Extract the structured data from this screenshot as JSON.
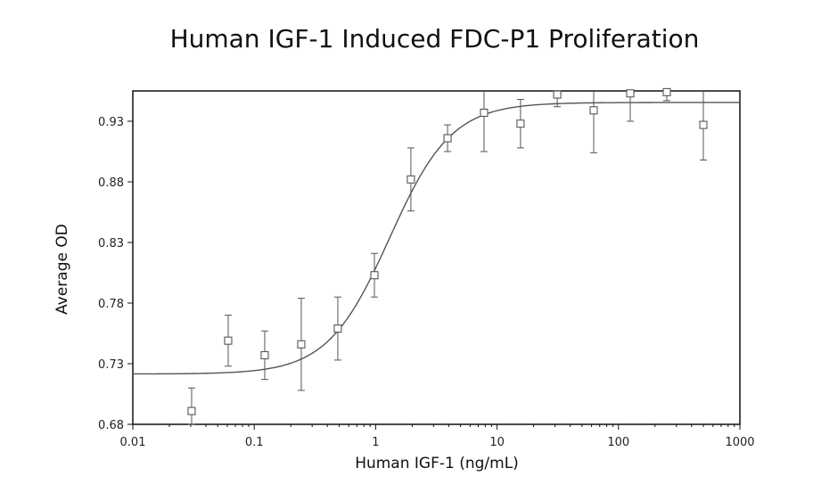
{
  "chart_data": {
    "type": "scatter",
    "title": "Human IGF-1 Induced FDC-P1 Proliferation",
    "xlabel": "Human IGF-1 (ng/mL)",
    "ylabel": "Average OD",
    "xscale": "log",
    "xlim": [
      0.01,
      1000
    ],
    "ylim": [
      0.68,
      0.955
    ],
    "xticks": [
      0.01,
      0.1,
      1,
      10,
      100,
      1000
    ],
    "xtick_labels": [
      "0.01",
      "0.1",
      "1",
      "10",
      "100",
      "1000"
    ],
    "yticks": [
      0.68,
      0.73,
      0.78,
      0.83,
      0.88,
      0.93
    ],
    "ytick_labels": [
      "0.68",
      "0.73",
      "0.78",
      "0.83",
      "0.88",
      "0.93"
    ],
    "grid": false,
    "legend": "none",
    "colors": {
      "data": "#555555",
      "curve": "#555555",
      "frame": "#111111"
    },
    "points": [
      {
        "x": 0.0305,
        "y": 0.691,
        "err": 0.019
      },
      {
        "x": 0.061,
        "y": 0.749,
        "err": 0.021
      },
      {
        "x": 0.122,
        "y": 0.737,
        "err": 0.02
      },
      {
        "x": 0.244,
        "y": 0.746,
        "err": 0.038
      },
      {
        "x": 0.488,
        "y": 0.759,
        "err": 0.026
      },
      {
        "x": 0.977,
        "y": 0.803,
        "err": 0.018
      },
      {
        "x": 1.95,
        "y": 0.882,
        "err": 0.026
      },
      {
        "x": 3.91,
        "y": 0.916,
        "err": 0.011
      },
      {
        "x": 7.81,
        "y": 0.937,
        "err": 0.032
      },
      {
        "x": 15.6,
        "y": 0.928,
        "err": 0.02
      },
      {
        "x": 31.3,
        "y": 0.952,
        "err": 0.01
      },
      {
        "x": 62.5,
        "y": 0.939,
        "err": 0.035
      },
      {
        "x": 125,
        "y": 0.953,
        "err": 0.023
      },
      {
        "x": 250,
        "y": 0.954,
        "err": 0.007
      },
      {
        "x": 500,
        "y": 0.927,
        "err": 0.029
      }
    ],
    "fit": {
      "model": "4PL",
      "bottom": 0.7215,
      "top": 0.9455,
      "ec50": 1.3,
      "hill": 1.7
    }
  }
}
